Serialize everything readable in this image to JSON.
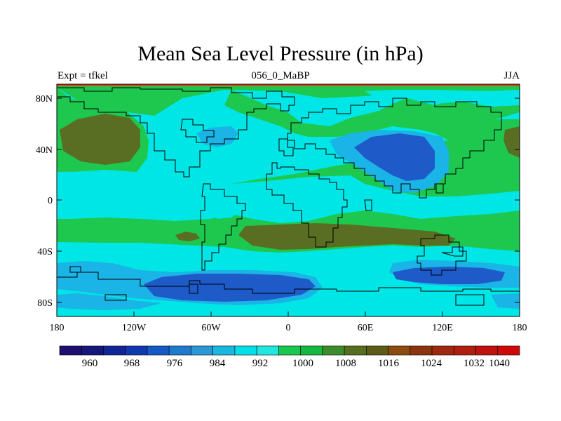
{
  "title": "Mean Sea Level Pressure (in hPa)",
  "subtitle_left": "Expt = tfkel",
  "subtitle_center": "056_0_MaBP",
  "subtitle_right": "JJA",
  "lon_ticks": [
    "180",
    "120W",
    "60W",
    "0",
    "60E",
    "120E",
    "180"
  ],
  "lat_ticks": [
    "80N",
    "40N",
    "0",
    "40S",
    "80S"
  ],
  "colorbar": {
    "labels": [
      "960",
      "968",
      "976",
      "984",
      "992",
      "1000",
      "1008",
      "1016",
      "1024",
      "1032",
      "1040"
    ],
    "colors": [
      "#1e0f6e",
      "#16177a",
      "#122598",
      "#1038b0",
      "#1459c4",
      "#1e7acc",
      "#2a97d6",
      "#18b8e0",
      "#00e0e8",
      "#20e8e0",
      "#18c850",
      "#14b840",
      "#3d8c2c",
      "#556e20",
      "#5a5c18",
      "#8c4c10",
      "#8c3410",
      "#a02810",
      "#b01c10",
      "#c01010",
      "#d00808"
    ]
  },
  "map_colors": {
    "ocean_green": "#1ec84f",
    "cyan": "#00e6e6",
    "light_blue": "#1ab4e6",
    "mid_blue": "#1478cc",
    "deep_blue": "#1e5ac8",
    "olive": "#5a6e23",
    "frame_red": "#c8501e"
  }
}
